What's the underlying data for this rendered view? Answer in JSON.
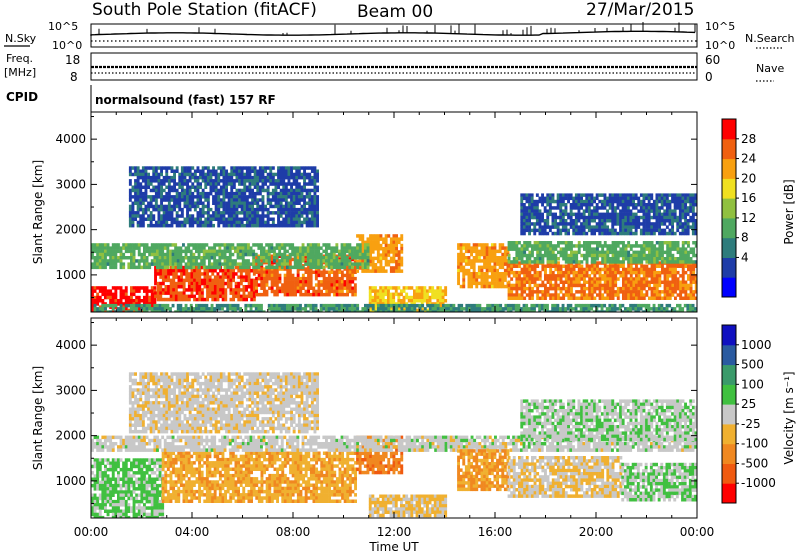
{
  "header": {
    "station": "South Pole Station (fitACF)",
    "beam": "Beam 00",
    "date": "27/Mar/2015"
  },
  "top_panels": {
    "nsky_label": "N.Sky",
    "nsearch_label": "N.Search",
    "nsky_ticks": [
      "10^5",
      "10^0"
    ],
    "nsearch_ticks": [
      "10^5",
      "10^0"
    ],
    "freq_label_1": "Freq.",
    "freq_label_2": "[MHz]",
    "freq_ticks": [
      "18",
      "8"
    ],
    "nave_label": "Nave",
    "nave_ticks": [
      "60",
      "0"
    ],
    "cpid_label": "CPID",
    "cpid_text": "normalsound (fast) 157 RF"
  },
  "chart_data": [
    {
      "type": "heatmap",
      "title": "",
      "xlabel": "Time UT",
      "ylabel": "Slant Range [km]",
      "x_ticks": [
        "00:00",
        "04:00",
        "08:00",
        "12:00",
        "16:00",
        "20:00",
        "00:00"
      ],
      "xlim": [
        0,
        24
      ],
      "y_ticks": [
        1000,
        2000,
        3000,
        4000
      ],
      "ylim": [
        180,
        4600
      ],
      "colorbar": {
        "label": "Power [dB]",
        "ticks": [
          "28",
          "24",
          "20",
          "16",
          "12",
          "8",
          "4"
        ],
        "range": [
          0,
          30
        ],
        "colors": [
          "#0000ff",
          "#1e3ca8",
          "#2e7c7c",
          "#4fa860",
          "#90c040",
          "#f0e020",
          "#f8a010",
          "#f06010",
          "#ff0000"
        ]
      },
      "series": [
        {
          "values": [
            {
              "t0": 0.0,
              "t1": 2.5,
              "r0": 200,
              "r1": 750,
              "level": 28
            },
            {
              "t0": 2.5,
              "t1": 6.5,
              "r0": 450,
              "r1": 1200,
              "level": 26
            },
            {
              "t0": 6.5,
              "t1": 10.5,
              "r0": 550,
              "r1": 1450,
              "level": 25
            },
            {
              "t0": 10.5,
              "t1": 12.3,
              "r0": 1100,
              "r1": 1900,
              "level": 22
            },
            {
              "t0": 0.0,
              "t1": 11.0,
              "r0": 1150,
              "r1": 1700,
              "level": 12
            },
            {
              "t0": 11.0,
              "t1": 14.0,
              "r0": 250,
              "r1": 750,
              "level": 20
            },
            {
              "t0": 14.5,
              "t1": 16.5,
              "r0": 750,
              "r1": 1700,
              "level": 22
            },
            {
              "t0": 16.5,
              "t1": 24.0,
              "r0": 500,
              "r1": 1300,
              "level": 24
            },
            {
              "t0": 16.5,
              "t1": 24.0,
              "r0": 1300,
              "r1": 1750,
              "level": 12
            },
            {
              "t0": 0.0,
              "t1": 24.0,
              "r0": 180,
              "r1": 360,
              "level": 10
            },
            {
              "t0": 1.5,
              "t1": 9.0,
              "r0": 2100,
              "r1": 3400,
              "level": 6
            },
            {
              "t0": 17.0,
              "t1": 24.0,
              "r0": 1900,
              "r1": 2800,
              "level": 6
            }
          ]
        }
      ]
    },
    {
      "type": "heatmap",
      "title": "",
      "xlabel": "Time UT",
      "ylabel": "Slant Range [km]",
      "x_ticks": [
        "00:00",
        "04:00",
        "08:00",
        "12:00",
        "16:00",
        "20:00",
        "00:00"
      ],
      "xlim": [
        0,
        24
      ],
      "y_ticks": [
        1000,
        2000,
        3000,
        4000
      ],
      "ylim": [
        180,
        4600
      ],
      "colorbar": {
        "label": "Velocity [m s⁻¹]",
        "ticks": [
          "1000",
          "500",
          "100",
          "25",
          "-25",
          "-100",
          "-500",
          "-1000"
        ],
        "range": [
          -1250,
          1250
        ],
        "colors": [
          "#ff0000",
          "#f05a10",
          "#f08820",
          "#f0b030",
          "#c8c8c8",
          "#40c040",
          "#3a9a6a",
          "#2a5aa0",
          "#1010c0"
        ]
      },
      "series": [
        {
          "values": [
            {
              "t0": 0.0,
              "t1": 2.8,
              "r0": 200,
              "r1": 1500,
              "level": 200
            },
            {
              "t0": 2.8,
              "t1": 10.5,
              "r0": 550,
              "r1": 1650,
              "level": -350
            },
            {
              "t0": 10.5,
              "t1": 12.3,
              "r0": 1200,
              "r1": 2000,
              "level": -600
            },
            {
              "t0": 0.0,
              "t1": 24.0,
              "r0": 1650,
              "r1": 2000,
              "level": 0
            },
            {
              "t0": 11.0,
              "t1": 14.0,
              "r0": 250,
              "r1": 700,
              "level": -200
            },
            {
              "t0": 14.5,
              "t1": 16.5,
              "r0": 800,
              "r1": 1700,
              "level": -450
            },
            {
              "t0": 16.5,
              "t1": 21.0,
              "r0": 700,
              "r1": 1550,
              "level": -120
            },
            {
              "t0": 21.0,
              "t1": 24.0,
              "r0": 600,
              "r1": 1400,
              "level": 150
            },
            {
              "t0": 1.5,
              "t1": 9.0,
              "r0": 2100,
              "r1": 3400,
              "level": -60
            },
            {
              "t0": 17.0,
              "t1": 24.0,
              "r0": 1900,
              "r1": 2800,
              "level": 80
            }
          ]
        }
      ]
    }
  ]
}
